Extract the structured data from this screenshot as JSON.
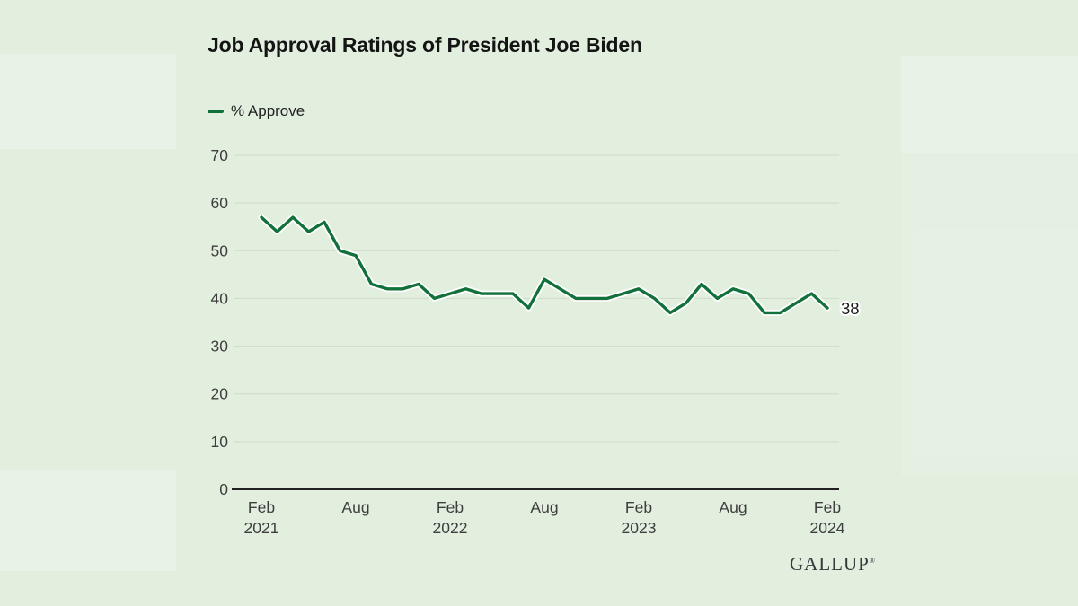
{
  "page": {
    "title": "Job Approval Ratings of President Joe Biden",
    "brand": "GALLUP",
    "brand_mark": "®"
  },
  "legend": {
    "label": "% Approve",
    "swatch_color": "#12703a"
  },
  "chart_data": {
    "type": "line",
    "title": "Job Approval Ratings of President Joe Biden",
    "xlabel": "",
    "ylabel": "",
    "ylim": [
      0,
      70
    ],
    "grid": true,
    "legend_position": "top-left",
    "line_color": "#12703a",
    "gridline_color": "#d3ddcf",
    "axis_color": "#212121",
    "tick_label_color": "#3e3e3e",
    "end_label": "38",
    "end_label_color": "#1c1c1c",
    "y_ticks": [
      0,
      10,
      20,
      30,
      40,
      50,
      60,
      70
    ],
    "x_ticks": [
      {
        "index": 0,
        "label": [
          "Feb",
          "2021"
        ]
      },
      {
        "index": 6,
        "label": [
          "Aug"
        ]
      },
      {
        "index": 12,
        "label": [
          "Feb",
          "2022"
        ]
      },
      {
        "index": 18,
        "label": [
          "Aug"
        ]
      },
      {
        "index": 24,
        "label": [
          "Feb",
          "2023"
        ]
      },
      {
        "index": 30,
        "label": [
          "Aug"
        ]
      },
      {
        "index": 36,
        "label": [
          "Feb",
          "2024"
        ]
      }
    ],
    "x": [
      "Feb 2021",
      "Mar 2021",
      "Apr 2021",
      "May 2021",
      "Jun 2021",
      "Jul 2021",
      "Aug 2021",
      "Sep 2021",
      "Oct 2021",
      "Nov 2021",
      "Dec 2021",
      "Jan 2022",
      "Feb 2022",
      "Mar 2022",
      "Apr 2022",
      "May 2022",
      "Jun 2022",
      "Jul 2022",
      "Aug 2022",
      "Sep 2022",
      "Oct 2022",
      "Nov 2022",
      "Dec 2022",
      "Jan 2023",
      "Feb 2023",
      "Mar 2023",
      "Apr 2023",
      "May 2023",
      "Jun 2023",
      "Jul 2023",
      "Aug 2023",
      "Sep 2023",
      "Oct 2023",
      "Nov 2023",
      "Dec 2023",
      "Jan 2024",
      "Feb 2024"
    ],
    "series": [
      {
        "name": "% Approve",
        "values": [
          57,
          54,
          57,
          54,
          56,
          50,
          49,
          43,
          42,
          42,
          43,
          40,
          41,
          42,
          41,
          41,
          41,
          38,
          44,
          42,
          40,
          40,
          40,
          41,
          42,
          40,
          37,
          39,
          43,
          40,
          42,
          41,
          37,
          37,
          39,
          41,
          38
        ]
      }
    ]
  }
}
